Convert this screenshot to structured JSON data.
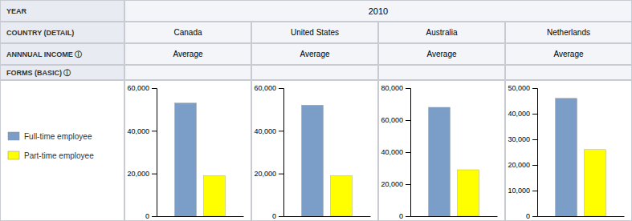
{
  "chart_data": [
    {
      "type": "bar",
      "title": "Canada",
      "subtitle": "Average",
      "annotations": [
        "YEAR",
        "COUNTRY (DETAIL)",
        "ANNNUAL INCOME ⓘ",
        "FORMS (BASIC) ⓘ",
        "2010"
      ],
      "legend": "left",
      "categories": [
        null
      ],
      "series": [
        {
          "name": "Full-time employee",
          "color": "#7B9EC9",
          "values": [
            53000
          ]
        },
        {
          "name": "Part-time employee",
          "color": "#FFFF00",
          "values": [
            19000
          ]
        }
      ],
      "ylim": [
        0,
        60000
      ],
      "yticks": [
        0,
        {
          "value": 20000,
          "label": "20,000"
        },
        {
          "value": 40000,
          "label": "40,000"
        },
        {
          "value": 60000,
          "label": "60,000"
        }
      ],
      "grid": false,
      "tick_labels": "y"
    },
    {
      "type": "bar",
      "title": "United States",
      "subtitle": "Average",
      "categories": [
        null
      ],
      "series": [
        {
          "name": "Full-time employee",
          "color": "#7B9EC9",
          "values": [
            52000
          ]
        },
        {
          "name": "Part-time employee",
          "color": "#FFFF00",
          "values": [
            19000
          ]
        }
      ],
      "ylim": [
        0,
        60000
      ],
      "yticks": [
        0,
        {
          "value": 20000,
          "label": "20,000"
        },
        {
          "value": 40000,
          "label": "40,000"
        },
        {
          "value": 60000,
          "label": "60,000"
        }
      ],
      "grid": false,
      "tick_labels": "y"
    },
    {
      "type": "bar",
      "title": "Australia",
      "subtitle": "Average",
      "categories": [
        null
      ],
      "series": [
        {
          "name": "Full-time employee",
          "color": "#7B9EC9",
          "values": [
            68000
          ]
        },
        {
          "name": "Part-time employee",
          "color": "#FFFF00",
          "values": [
            29000
          ]
        }
      ],
      "ylim": [
        0,
        80000
      ],
      "yticks": [
        0,
        {
          "value": 20000,
          "label": "20,000"
        },
        {
          "value": 40000,
          "label": "40,000"
        },
        {
          "value": 60000,
          "label": "60,000"
        },
        {
          "value": 80000,
          "label": "80,000"
        }
      ],
      "grid": false,
      "tick_labels": "y"
    },
    {
      "type": "bar",
      "title": "Netherlands",
      "subtitle": "Average",
      "categories": [
        null
      ],
      "series": [
        {
          "name": "Full-time employee",
          "color": "#7B9EC9",
          "values": [
            46000
          ]
        },
        {
          "name": "Part-time employee",
          "color": "#FFFF00",
          "values": [
            26000
          ]
        }
      ],
      "ylim": [
        0,
        50000
      ],
      "yticks": [
        0,
        {
          "value": 10000,
          "label": "10,000"
        },
        {
          "value": 20000,
          "label": "20,000"
        },
        {
          "value": 30000,
          "label": "30,000"
        },
        {
          "value": 40000,
          "label": "40,000"
        },
        {
          "value": 50000,
          "label": "50,000"
        }
      ],
      "grid": false,
      "tick_labels": "y"
    }
  ]
}
